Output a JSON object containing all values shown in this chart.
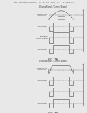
{
  "bg_color": "#e8e8e8",
  "header_text": "Patent Application Publication   Nov. 10, 2016   Sheet 6 of 7   US 2016/0336 A1",
  "fig_a": {
    "title": "Driving Signals / Current Signals",
    "labels": [
      "current through\nanti-reflection\nresonance",
      "driving signal",
      "gate signal\ncoupled to\nresonance trigger",
      "driving signal"
    ],
    "caption": "FIG. 7A",
    "show_arch": true
  },
  "fig_b": {
    "title": "Driving Signals / Current Signals",
    "labels": [
      "current through\nanti-reflection\nresonance",
      "driving signal",
      "gate signal",
      "driving signal"
    ],
    "caption": "FIG. 7B",
    "show_arch": false
  },
  "line_color": "#666666",
  "text_color": "#333333",
  "lw": 0.45
}
